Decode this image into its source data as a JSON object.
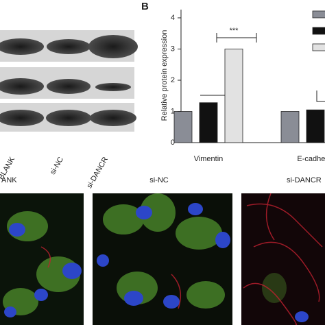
{
  "chart_data": {
    "type": "bar",
    "y_label": "Relative protein expression",
    "categories": [
      "Vimentin",
      "E-cadherin"
    ],
    "series": [
      {
        "color": "#8a8d96",
        "values": [
          1.0,
          1.0
        ]
      },
      {
        "color": "#111111",
        "values": [
          1.28,
          1.05
        ]
      },
      {
        "color": "#e2e2e2",
        "values": [
          3.0,
          null
        ]
      }
    ],
    "ylim": [
      0,
      4
    ],
    "yticks": [
      0,
      1,
      2,
      3,
      4
    ],
    "annotation": "***"
  },
  "figure": {
    "panel_label": "B",
    "blot_labels": [
      "BLANK",
      "si-NC",
      "si-DANCR"
    ],
    "image_labels": [
      "ANK",
      "si-NC",
      "si-DANCR"
    ]
  }
}
